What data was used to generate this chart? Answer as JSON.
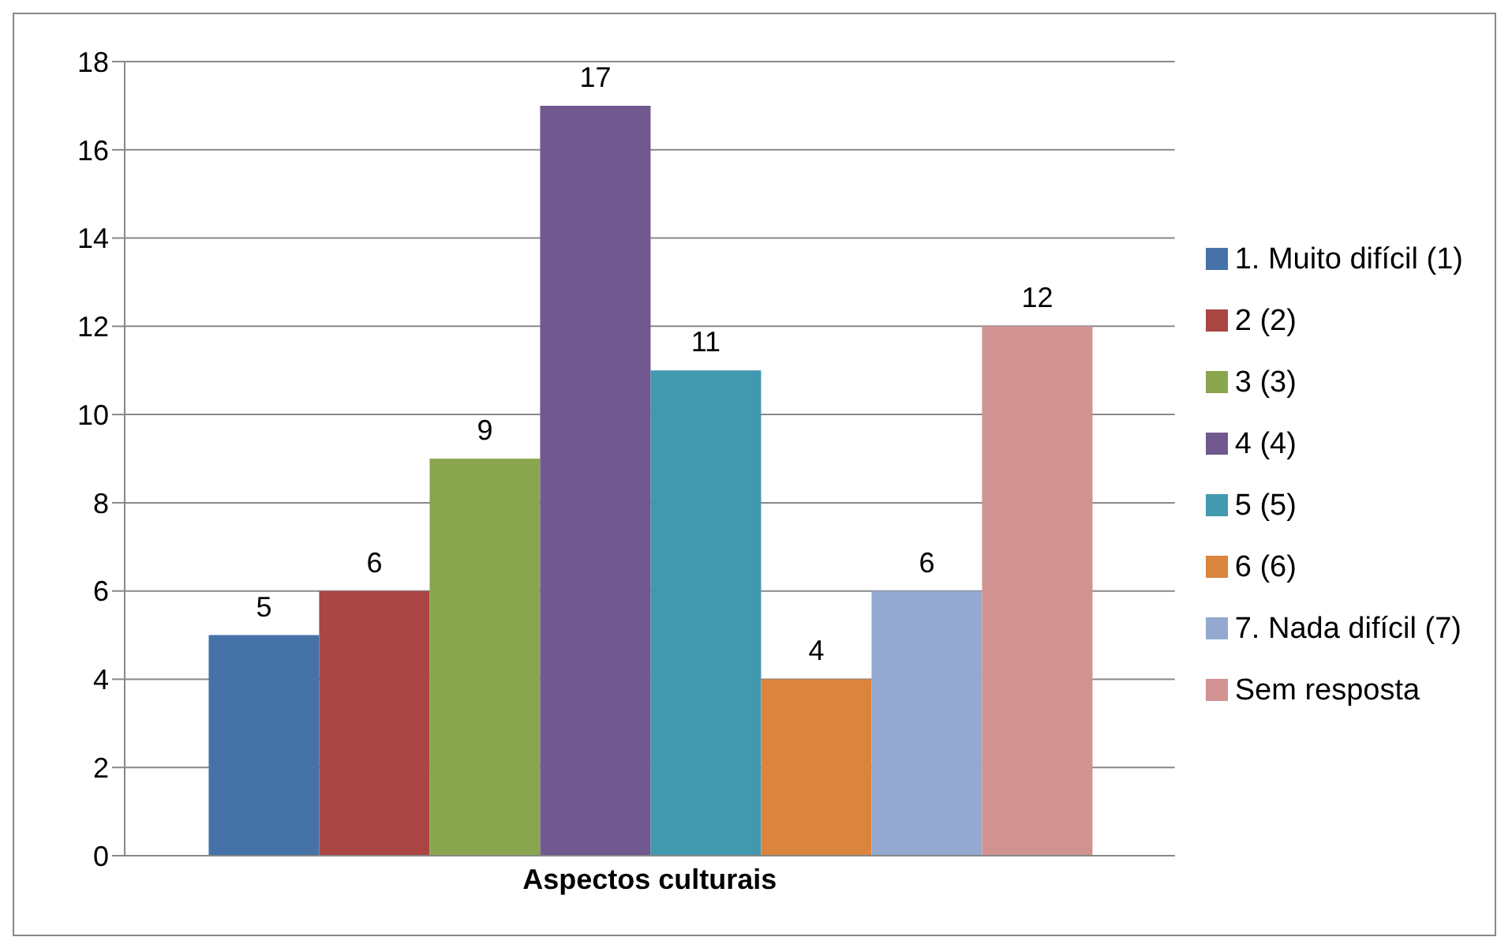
{
  "chart_data": {
    "type": "bar",
    "categories": [
      "Aspectos culturais"
    ],
    "series": [
      {
        "name": "1. Muito difícil (1)",
        "color": "#4572a7",
        "values": [
          5
        ]
      },
      {
        "name": "2 (2)",
        "color": "#aa4643",
        "values": [
          6
        ]
      },
      {
        "name": "3 (3)",
        "color": "#89a54e",
        "values": [
          9
        ]
      },
      {
        "name": "4 (4)",
        "color": "#71588f",
        "values": [
          17
        ]
      },
      {
        "name": "5 (5)",
        "color": "#4198af",
        "values": [
          11
        ]
      },
      {
        "name": "6 (6)",
        "color": "#db843d",
        "values": [
          4
        ]
      },
      {
        "name": "7. Nada difícil (7)",
        "color": "#93a9cf",
        "values": [
          6
        ]
      },
      {
        "name": "Sem resposta",
        "color": "#d19392",
        "values": [
          12
        ]
      }
    ],
    "ylim": [
      0,
      18
    ],
    "yticks": [
      0,
      2,
      4,
      6,
      8,
      10,
      12,
      14,
      16,
      18
    ],
    "grid": "y",
    "legend": "right",
    "data_labels": true
  }
}
